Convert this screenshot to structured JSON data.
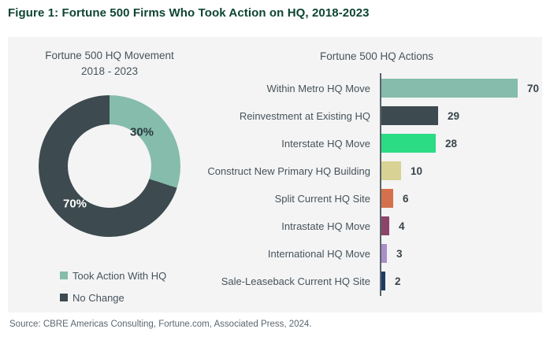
{
  "figure_title": "Figure 1: Fortune 500 Firms Who Took Action on HQ, 2018-2023",
  "source_note": "Source: CBRE Americas Consulting, Fortune.com, Associated Press, 2024.",
  "colors": {
    "figure_title_green": "#0e4433",
    "panel_background": "#f4f4f5",
    "teal": "#86bcac",
    "dark_slate": "#3d4a4f",
    "bright_green": "#2bdc85",
    "khaki": "#d8d394",
    "orange": "#d4714c",
    "plum": "#8c4569",
    "lavender": "#a98fc9",
    "navy": "#1e3a64",
    "label_text": "#46535a",
    "axis_line": "#5a6468"
  },
  "chart_data": [
    {
      "type": "pie",
      "donut": true,
      "title": "Fortune 500 HQ Movement",
      "subtitle": "2018 - 2023",
      "labels": [
        "Took Action With HQ",
        "No Change"
      ],
      "values": [
        30,
        70
      ],
      "value_labels": [
        "30%",
        "70%"
      ],
      "colors": [
        "#86bcac",
        "#3d4a4f"
      ],
      "start_angle_deg": 0,
      "direction": "clockwise",
      "legend_position": "bottom-left"
    },
    {
      "type": "bar",
      "orientation": "horizontal",
      "title": "Fortune 500 HQ Actions",
      "categories": [
        "Within Metro HQ Move",
        "Reinvestment at Existing HQ",
        "Interstate HQ Move",
        "Construct New Primary HQ Building",
        "Split Current HQ Site",
        "Intrastate HQ Move",
        "International HQ Move",
        "Sale-Leaseback Current HQ Site"
      ],
      "values": [
        70,
        29,
        28,
        10,
        6,
        4,
        3,
        2
      ],
      "bar_colors": [
        "#86bcac",
        "#3d4a4f",
        "#2bdc85",
        "#d8d394",
        "#d4714c",
        "#8c4569",
        "#a98fc9",
        "#1e3a64"
      ],
      "xlim": [
        0,
        75
      ],
      "grid": false,
      "value_labels_shown": true
    }
  ]
}
